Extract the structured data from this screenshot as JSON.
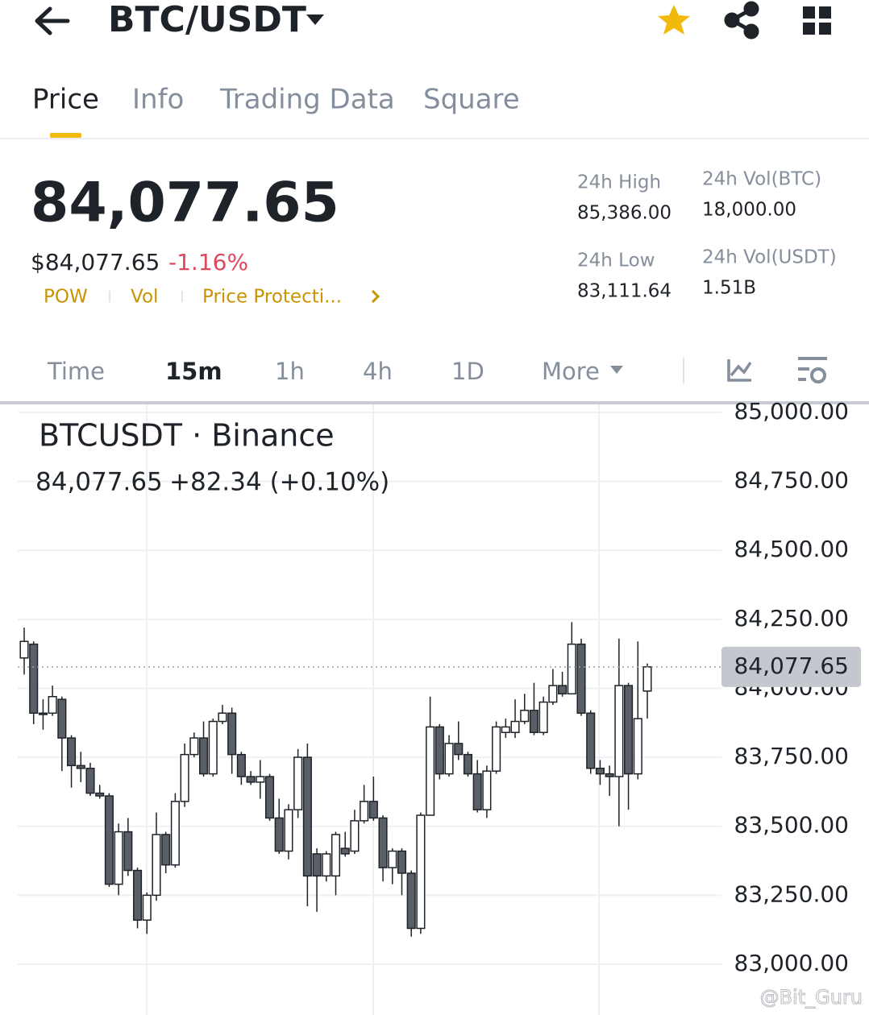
{
  "header": {
    "pair": "BTC/USDT"
  },
  "tabs": [
    "Price",
    "Info",
    "Trading Data",
    "Square"
  ],
  "price": "84,077.65",
  "usd_price": "$84,077.65",
  "change": "-1.16%",
  "tags": [
    "POW",
    "Vol",
    "Price Protecti..."
  ],
  "stats": [
    {
      "label": "24h High",
      "value": "85,386.00"
    },
    {
      "label": "24h Vol(BTC)",
      "value": "18,000.00"
    },
    {
      "label": "24h Low",
      "value": "83,111.64"
    },
    {
      "label": "24h Vol(USDT)",
      "value": "1.51B"
    }
  ],
  "intervals": [
    "Time",
    "15m",
    "1h",
    "4h",
    "1D",
    "More"
  ],
  "chart_data": {
    "type": "candlestick",
    "title": "BTCUSDT · Binance",
    "last_label": "84,077.65",
    "change_label": "+82.34 (+0.10%)",
    "current_price": {
      "value": 84077.65,
      "label": "84,077.65"
    },
    "ylim": [
      82816,
      85029
    ],
    "yticks": [
      {
        "value": 85000,
        "label": "85,000.00"
      },
      {
        "value": 84750,
        "label": "84,750.00"
      },
      {
        "value": 84500,
        "label": "84,500.00"
      },
      {
        "value": 84250,
        "label": "84,250.00"
      },
      {
        "value": 84000,
        "label": "84,000.00"
      },
      {
        "value": 83750,
        "label": "83,750.00"
      },
      {
        "value": 83500,
        "label": "83,500.00"
      },
      {
        "value": 83250,
        "label": "83,250.00"
      },
      {
        "value": 83000,
        "label": "83,000.00"
      }
    ],
    "grid": true,
    "up_color": "#ffffff",
    "down_color": "#5a5e66",
    "open": [
      84110,
      84160,
      83910,
      83910,
      83960,
      83820,
      83720,
      83710,
      83620,
      83610,
      83290,
      83480,
      83340,
      83160,
      83250,
      83470,
      83360,
      83590,
      83760,
      83820,
      83690,
      83880,
      83910,
      83760,
      83680,
      83660,
      83680,
      83530,
      83410,
      83560,
      83750,
      83400,
      83320,
      83320,
      83420,
      83410,
      83520,
      83590,
      83530,
      83350,
      83410,
      83330,
      83130,
      83540,
      83860,
      83690,
      83800,
      83760,
      83690,
      83560,
      83700,
      83840,
      83840,
      83880,
      83920,
      83840,
      83950,
      84010,
      83980,
      84160,
      83910,
      83710,
      83690,
      83680,
      84010,
      83690,
      83990
    ],
    "high": [
      84220,
      84170,
      83960,
      84010,
      83970,
      83830,
      83770,
      83730,
      83650,
      83620,
      83510,
      83530,
      83350,
      83260,
      83550,
      83480,
      83620,
      83800,
      83840,
      83880,
      83890,
      83940,
      83930,
      83770,
      83700,
      83740,
      83690,
      83600,
      83580,
      83780,
      83800,
      83420,
      83410,
      83480,
      83480,
      83560,
      83650,
      83680,
      83540,
      83420,
      83420,
      83340,
      83550,
      83970,
      83870,
      83830,
      83880,
      83770,
      83740,
      83720,
      83880,
      83890,
      83960,
      83980,
      84020,
      83970,
      84070,
      84060,
      84240,
      84180,
      83920,
      83740,
      83720,
      84180,
      84020,
      84170,
      84090
    ],
    "low": [
      84050,
      83870,
      83850,
      83900,
      83700,
      83640,
      83660,
      83610,
      83600,
      83280,
      83250,
      83320,
      83130,
      83110,
      83230,
      83330,
      83350,
      83570,
      83750,
      83680,
      83680,
      83870,
      83690,
      83650,
      83650,
      83600,
      83520,
      83400,
      83380,
      83530,
      83210,
      83190,
      83300,
      83250,
      83390,
      83400,
      83510,
      83520,
      83300,
      83290,
      83250,
      83100,
      83110,
      83540,
      83670,
      83680,
      83740,
      83680,
      83550,
      83530,
      83690,
      83820,
      83820,
      83870,
      83830,
      83830,
      83940,
      83970,
      83980,
      83900,
      83690,
      83650,
      83610,
      83500,
      83560,
      83670,
      83890
    ],
    "close": [
      84170,
      83910,
      83905,
      83970,
      83820,
      83720,
      83710,
      83620,
      83610,
      83290,
      83480,
      83340,
      83160,
      83250,
      83470,
      83360,
      83590,
      83760,
      83820,
      83690,
      83880,
      83910,
      83760,
      83680,
      83660,
      83680,
      83530,
      83410,
      83560,
      83750,
      83320,
      83320,
      83400,
      83470,
      83400,
      83520,
      83590,
      83530,
      83350,
      83410,
      83330,
      83130,
      83540,
      83860,
      83690,
      83800,
      83760,
      83690,
      83560,
      83700,
      83860,
      83860,
      83880,
      83920,
      83840,
      83950,
      84010,
      83980,
      84160,
      83910,
      83710,
      83690,
      83680,
      84010,
      83690,
      83890,
      84077.65
    ]
  },
  "watermark": "@Bit_Guru"
}
